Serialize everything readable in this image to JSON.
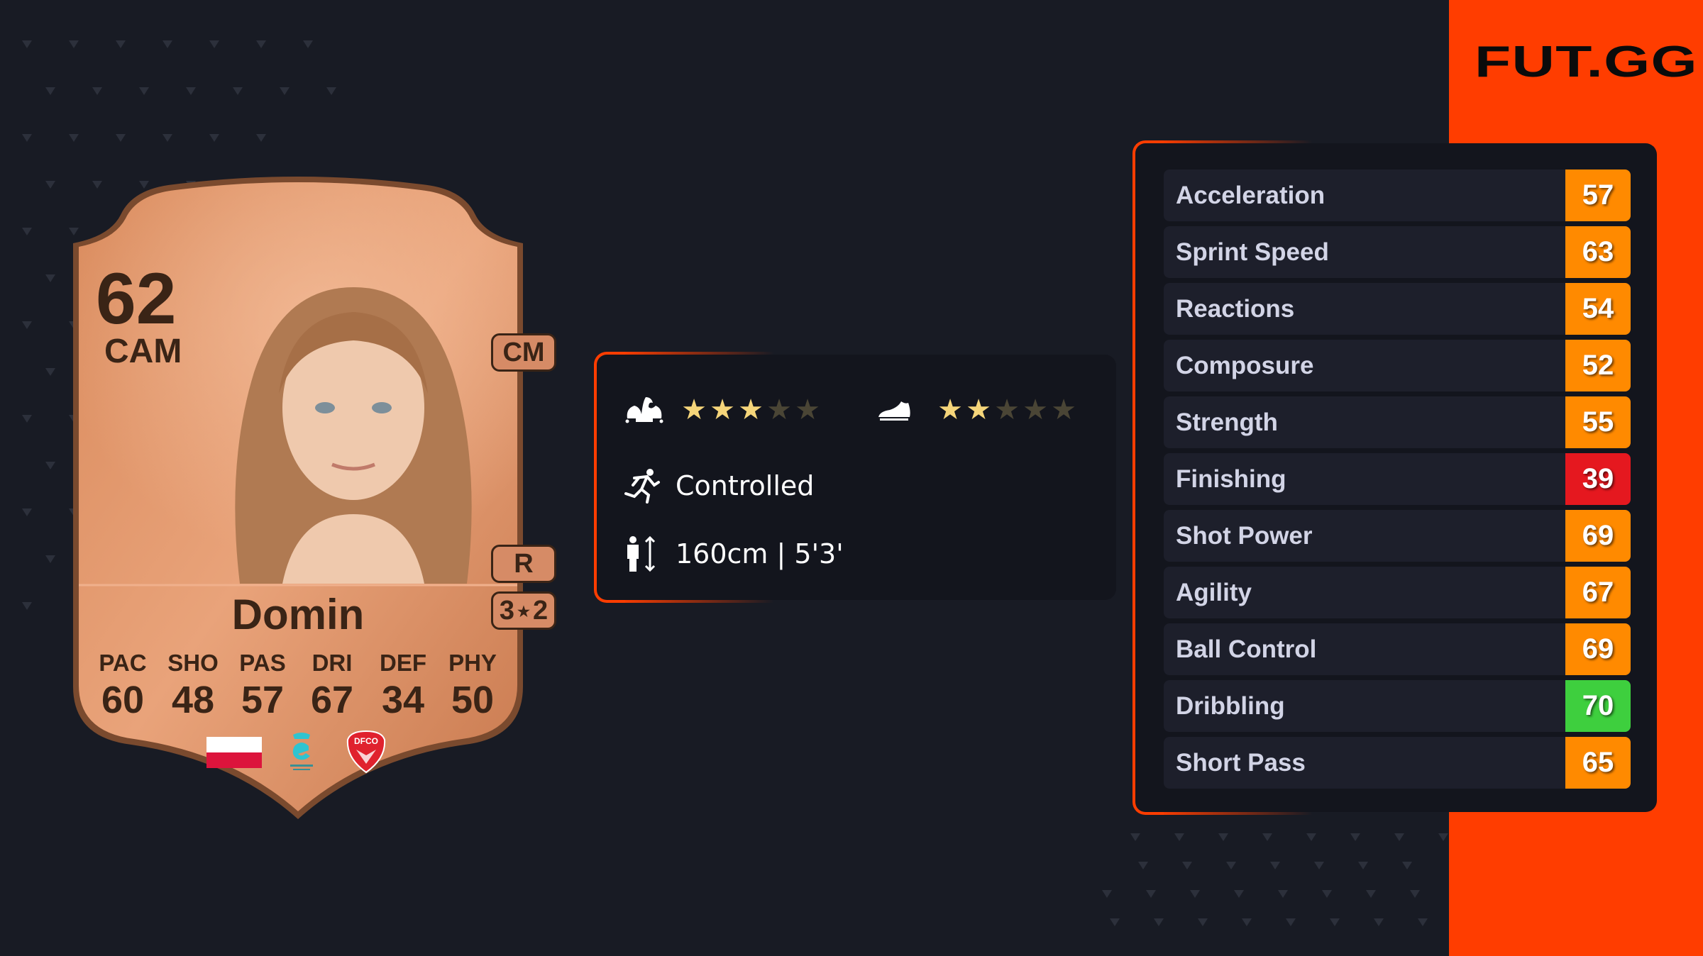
{
  "brand": {
    "logo": "FUT.GG",
    "accent": "#ff3d00"
  },
  "card": {
    "rating": "62",
    "position": "CAM",
    "name": "Domin",
    "alt_position": "CM",
    "preferred_foot": "R",
    "skill_weak": {
      "left": "3",
      "right": "2"
    },
    "attributes": [
      {
        "label": "PAC",
        "value": "60"
      },
      {
        "label": "SHO",
        "value": "48"
      },
      {
        "label": "PAS",
        "value": "57"
      },
      {
        "label": "DRI",
        "value": "67"
      },
      {
        "label": "DEF",
        "value": "34"
      },
      {
        "label": "PHY",
        "value": "50"
      }
    ],
    "nation": "poland-flag",
    "league": "arkema-premiere-ligue-logo",
    "club": "dfco-crest",
    "tier_color": "#d9875a"
  },
  "info": {
    "skill_moves_stars": 3,
    "weak_foot_stars": 2,
    "max_stars": 5,
    "accelerate": "Controlled",
    "height": "160cm | 5'3'",
    "star_on": "#f5d57a",
    "star_off": "#4a4535"
  },
  "stats": [
    {
      "label": "Acceleration",
      "value": "57",
      "color": "#ff8a00"
    },
    {
      "label": "Sprint Speed",
      "value": "63",
      "color": "#ff8a00"
    },
    {
      "label": "Reactions",
      "value": "54",
      "color": "#ff8a00"
    },
    {
      "label": "Composure",
      "value": "52",
      "color": "#ff8a00"
    },
    {
      "label": "Strength",
      "value": "55",
      "color": "#ff8a00"
    },
    {
      "label": "Finishing",
      "value": "39",
      "color": "#e5181f"
    },
    {
      "label": "Shot Power",
      "value": "69",
      "color": "#ff8a00"
    },
    {
      "label": "Agility",
      "value": "67",
      "color": "#ff8a00"
    },
    {
      "label": "Ball Control",
      "value": "69",
      "color": "#ff8a00"
    },
    {
      "label": "Dribbling",
      "value": "70",
      "color": "#3ecf3e"
    },
    {
      "label": "Short Pass",
      "value": "65",
      "color": "#ff8a00"
    }
  ]
}
